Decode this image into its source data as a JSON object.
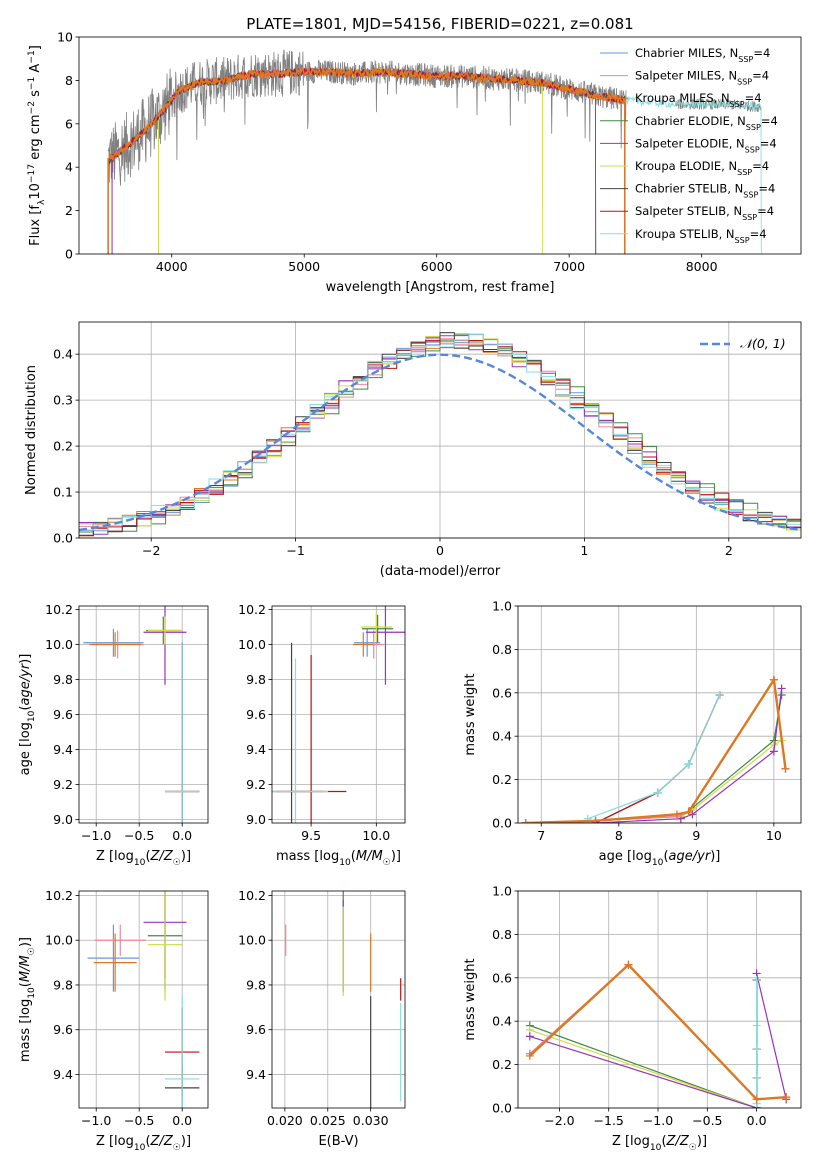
{
  "figure": {
    "title": "PLATE=1801, MJD=54156, FIBERID=0221, z=0.081"
  },
  "colors": {
    "chabrier_miles": "#6699dd",
    "salpeter_miles": "#ee8899",
    "kroupa_miles": "#dd7722",
    "chabrier_elodie": "#448844",
    "salpeter_elodie": "#9933bb",
    "kroupa_elodie": "#ccdd44",
    "chabrier_stelib": "#444444",
    "salpeter_stelib": "#bb1111",
    "kroupa_stelib": "#88dddd",
    "observed": "#808080",
    "normal": "#5588dd"
  },
  "chart_data": [
    {
      "id": "spectrum",
      "type": "line",
      "xlabel": "wavelength [Angstrom, rest frame]",
      "ylabel": "Flux [f_λ 10^-17 erg cm^-2 s^-1 A^-1]",
      "xlim": [
        3300,
        8750
      ],
      "ylim": [
        0,
        10
      ],
      "xticks": [
        4000,
        5000,
        6000,
        7000,
        8000
      ],
      "yticks": [
        0,
        2,
        4,
        6,
        8,
        10
      ],
      "legend_position": "right",
      "legend": [
        "Chabrier MILES, N_SSP=4",
        "Salpeter MILES, N_SSP=4",
        "Kroupa MILES, N_SSP=4",
        "Chabrier ELODIE, N_SSP=4",
        "Salpeter ELODIE, N_SSP=4",
        "Kroupa ELODIE, N_SSP=4",
        "Chabrier STELIB, N_SSP=4",
        "Salpeter STELIB, N_SSP=4",
        "Kroupa STELIB, N_SSP=4"
      ],
      "continuum": {
        "x": [
          3520,
          3650,
          3800,
          3950,
          4050,
          4200,
          4400,
          4600,
          4800,
          5000,
          5200,
          5400,
          5600,
          5800,
          6000,
          6200,
          6400,
          6600,
          6800,
          7000,
          7200,
          7400,
          7600,
          7800,
          8000,
          8200,
          8400
        ],
        "y": [
          4.3,
          4.9,
          5.7,
          6.7,
          7.5,
          7.9,
          8.0,
          8.3,
          8.3,
          8.4,
          8.4,
          8.3,
          8.4,
          8.3,
          8.2,
          8.2,
          8.1,
          8.0,
          7.9,
          7.6,
          7.3,
          7.1,
          7.0,
          6.9,
          6.9,
          6.9,
          6.8
        ]
      },
      "model_ranges": [
        [
          3520,
          7420
        ],
        [
          3520,
          7420
        ],
        [
          3520,
          7420
        ],
        [
          3550,
          7200
        ],
        [
          3550,
          7200
        ],
        [
          3900,
          6800
        ],
        [
          3520,
          7420
        ],
        [
          3520,
          7420
        ],
        [
          3900,
          8450
        ]
      ]
    },
    {
      "id": "residuals",
      "type": "line",
      "xlabel": "(data-model)/error",
      "ylabel": "Normed distribution",
      "xlim": [
        -2.5,
        2.5
      ],
      "ylim": [
        0,
        0.47
      ],
      "xticks": [
        -2,
        -1,
        0,
        1,
        2
      ],
      "yticks": [
        0.0,
        0.1,
        0.2,
        0.3,
        0.4
      ],
      "legend_position": "upper right",
      "series_label": "𝒩(0, 1)",
      "bin_width": 0.1
    },
    {
      "id": "age-vs-metallicity",
      "type": "scatter",
      "xlabel": "Z [log10(Z/Z☉)]",
      "ylabel": "age [log10(age/yr)]",
      "xlim": [
        -1.2,
        0.3
      ],
      "ylim": [
        8.98,
        10.22
      ],
      "xticks": [
        -1.0,
        -0.5,
        0.0
      ],
      "yticks": [
        9.0,
        9.2,
        9.4,
        9.6,
        9.8,
        10.0,
        10.2
      ],
      "points": [
        {
          "series": 0,
          "x": -0.8,
          "y": 10.01,
          "xerr": 0.35,
          "yerr": 0.08
        },
        {
          "series": 1,
          "x": -0.75,
          "y": 10.0,
          "xerr": 0.3,
          "yerr": 0.08
        },
        {
          "series": 2,
          "x": -0.78,
          "y": 10.0,
          "xerr": 0.3,
          "yerr": 0.07
        },
        {
          "series": 3,
          "x": -0.22,
          "y": 10.08,
          "xerr": 0.2,
          "yerr": 0.08
        },
        {
          "series": 4,
          "x": -0.2,
          "y": 10.07,
          "xerr": 0.25,
          "yerr": 0.3
        },
        {
          "series": 5,
          "x": -0.2,
          "y": 10.08,
          "xerr": 0.2,
          "yerr": 0.08
        },
        {
          "series": 6,
          "x": 0.0,
          "y": 9.16,
          "xerr": 0.2,
          "yerr": 0.85
        },
        {
          "series": 7,
          "x": 0.0,
          "y": 9.16,
          "xerr": 0.2,
          "yerr": 0.85
        },
        {
          "series": 8,
          "x": 0.0,
          "y": 9.16,
          "xerr": 0.2,
          "yerr": 0.85
        }
      ]
    },
    {
      "id": "age-vs-mass",
      "type": "scatter",
      "xlabel": "mass [log10(M/M☉)]",
      "ylabel": "",
      "xlim": [
        9.2,
        10.22
      ],
      "ylim": [
        8.98,
        10.22
      ],
      "xticks": [
        9.5,
        10.0
      ],
      "yticks": [
        9.0,
        9.2,
        9.4,
        9.6,
        9.8,
        10.0,
        10.2
      ],
      "points": [
        {
          "series": 0,
          "x": 9.93,
          "y": 10.01,
          "xerr": 0.1,
          "yerr": 0.08
        },
        {
          "series": 1,
          "x": 9.98,
          "y": 10.0,
          "xerr": 0.08,
          "yerr": 0.08
        },
        {
          "series": 2,
          "x": 9.9,
          "y": 10.0,
          "xerr": 0.08,
          "yerr": 0.07
        },
        {
          "series": 3,
          "x": 10.01,
          "y": 10.09,
          "xerr": 0.12,
          "yerr": 0.08
        },
        {
          "series": 4,
          "x": 10.07,
          "y": 10.07,
          "xerr": 0.15,
          "yerr": 0.3
        },
        {
          "series": 5,
          "x": 10.0,
          "y": 10.1,
          "xerr": 0.12,
          "yerr": 0.08
        },
        {
          "series": 6,
          "x": 9.35,
          "y": 9.16,
          "xerr": 0.25,
          "yerr": 0.85
        },
        {
          "series": 7,
          "x": 9.5,
          "y": 9.16,
          "xerr": 0.27,
          "yerr": 0.78
        },
        {
          "series": 8,
          "x": 9.38,
          "y": 9.16,
          "xerr": 0.25,
          "yerr": 0.76
        }
      ]
    },
    {
      "id": "weight-vs-age",
      "type": "line",
      "xlabel": "age [log10(age/yr)]",
      "ylabel": "mass weight",
      "xlim": [
        6.7,
        10.35
      ],
      "ylim": [
        0,
        1.0
      ],
      "xticks": [
        7,
        8,
        9,
        10
      ],
      "yticks": [
        0.0,
        0.2,
        0.4,
        0.6,
        0.8,
        1.0
      ],
      "series": [
        {
          "x": [
            6.8,
            7.7,
            8.75,
            8.9,
            10.0,
            10.15
          ],
          "y": [
            0.0,
            0.01,
            0.03,
            0.05,
            0.66,
            0.25
          ]
        },
        {
          "x": [
            6.8,
            7.7,
            8.75,
            8.9,
            10.0,
            10.15
          ],
          "y": [
            0.0,
            0.01,
            0.03,
            0.05,
            0.66,
            0.25
          ]
        },
        {
          "x": [
            6.8,
            7.7,
            8.75,
            8.9,
            10.0,
            10.15
          ],
          "y": [
            0.0,
            0.01,
            0.04,
            0.05,
            0.66,
            0.25
          ]
        },
        {
          "x": [
            6.8,
            7.7,
            8.8,
            8.95,
            10.0,
            10.1
          ],
          "y": [
            0.0,
            0.01,
            0.03,
            0.07,
            0.38,
            0.59
          ]
        },
        {
          "x": [
            6.8,
            7.7,
            8.8,
            8.95,
            10.0,
            10.1
          ],
          "y": [
            0.0,
            0.0,
            0.02,
            0.04,
            0.33,
            0.62
          ]
        },
        {
          "x": [
            6.8,
            7.7,
            8.8,
            8.95,
            10.0,
            10.1
          ],
          "y": [
            0.0,
            0.01,
            0.03,
            0.06,
            0.36,
            0.38
          ]
        },
        {
          "x": [
            7.7,
            8.5,
            8.9,
            9.3
          ],
          "y": [
            0.0,
            0.14,
            0.27,
            0.59
          ]
        },
        {
          "x": [
            7.7,
            8.5,
            8.9,
            9.3
          ],
          "y": [
            0.0,
            0.14,
            0.27,
            0.59
          ]
        },
        {
          "x": [
            7.6,
            8.5,
            8.9,
            9.3
          ],
          "y": [
            0.02,
            0.14,
            0.27,
            0.59
          ]
        }
      ]
    },
    {
      "id": "mass-vs-metallicity",
      "type": "scatter",
      "xlabel": "Z [log10(Z/Z☉)]",
      "ylabel": "mass [log10(M/M☉)]",
      "xlim": [
        -1.2,
        0.3
      ],
      "ylim": [
        9.25,
        10.22
      ],
      "xticks": [
        -1.0,
        -0.5,
        0.0
      ],
      "yticks": [
        9.4,
        9.6,
        9.8,
        10.0,
        10.2
      ],
      "points": [
        {
          "series": 0,
          "x": -0.8,
          "y": 9.92,
          "xerr": 0.3,
          "yerr": 0.15
        },
        {
          "series": 1,
          "x": -0.72,
          "y": 10.0,
          "xerr": 0.3,
          "yerr": 0.07
        },
        {
          "series": 2,
          "x": -0.78,
          "y": 9.9,
          "xerr": 0.25,
          "yerr": 0.13
        },
        {
          "series": 3,
          "x": -0.2,
          "y": 10.02,
          "xerr": 0.2,
          "yerr": 0.25
        },
        {
          "series": 4,
          "x": -0.2,
          "y": 10.08,
          "xerr": 0.25,
          "yerr": 0.25
        },
        {
          "series": 5,
          "x": -0.2,
          "y": 9.98,
          "xerr": 0.2,
          "yerr": 0.25
        },
        {
          "series": 6,
          "x": 0.0,
          "y": 9.34,
          "xerr": 0.2,
          "yerr": 0.1
        },
        {
          "series": 7,
          "x": 0.0,
          "y": 9.5,
          "xerr": 0.2,
          "yerr": 0.2
        },
        {
          "series": 8,
          "x": 0.0,
          "y": 9.38,
          "xerr": 0.2,
          "yerr": 0.37
        }
      ]
    },
    {
      "id": "mass-vs-extinction",
      "type": "scatter",
      "xlabel": "E(B-V)",
      "ylabel": "",
      "xlim": [
        0.0185,
        0.034
      ],
      "ylim": [
        9.25,
        10.22
      ],
      "xticks": [
        0.02,
        0.025,
        0.03
      ],
      "yticks": [
        9.4,
        9.6,
        9.8,
        10.0,
        10.2
      ],
      "points": [
        {
          "series": 0,
          "x": 0.0268,
          "y": 9.92,
          "yerr": 0.15
        },
        {
          "series": 1,
          "x": 0.0201,
          "y": 10.0,
          "yerr": 0.07
        },
        {
          "series": 2,
          "x": 0.03,
          "y": 9.9,
          "yerr": 0.13
        },
        {
          "series": 3,
          "x": 0.0268,
          "y": 10.02,
          "yerr": 0.25
        },
        {
          "series": 4,
          "x": 0.0268,
          "y": 10.08,
          "yerr": 0.1
        },
        {
          "series": 5,
          "x": 0.0268,
          "y": 9.95,
          "yerr": 0.2
        },
        {
          "series": 6,
          "x": 0.03,
          "y": 9.5,
          "yerr": 0.25
        },
        {
          "series": 7,
          "x": 0.0335,
          "y": 9.78,
          "yerr": 0.05
        },
        {
          "series": 8,
          "x": 0.0335,
          "y": 9.5,
          "yerr": 0.22
        }
      ]
    },
    {
      "id": "weight-vs-metallicity",
      "type": "line",
      "xlabel": "Z [log10(Z/Z☉)]",
      "ylabel": "mass weight",
      "xlim": [
        -2.42,
        0.45
      ],
      "ylim": [
        0,
        1.0
      ],
      "xticks": [
        -2.0,
        -1.5,
        -1.0,
        -0.5,
        0.0
      ],
      "yticks": [
        0.0,
        0.2,
        0.4,
        0.6,
        0.8,
        1.0
      ],
      "series": [
        {
          "x": [
            -2.3,
            -1.3,
            0.0,
            0.3
          ],
          "y": [
            0.25,
            0.66,
            0.04,
            0.05
          ]
        },
        {
          "x": [
            -2.3,
            -1.3,
            0.0,
            0.3
          ],
          "y": [
            0.25,
            0.66,
            0.04,
            0.05
          ]
        },
        {
          "x": [
            -2.3,
            -1.3,
            0.0,
            0.3
          ],
          "y": [
            0.24,
            0.66,
            0.04,
            0.05
          ]
        },
        {
          "x": [
            -2.3,
            0.0,
            0.0
          ],
          "y": [
            0.38,
            0.0,
            0.59
          ]
        },
        {
          "x": [
            -2.3,
            0.0,
            0.0,
            0.3
          ],
          "y": [
            0.33,
            0.0,
            0.62,
            0.04
          ]
        },
        {
          "x": [
            -2.3,
            0.0,
            0.0
          ],
          "y": [
            0.36,
            0.0,
            0.38
          ]
        },
        {
          "x": [
            0.0,
            0.0,
            0.0,
            0.0
          ],
          "y": [
            0.0,
            0.14,
            0.27,
            0.59
          ]
        },
        {
          "x": [
            0.0,
            0.0,
            0.0,
            0.0
          ],
          "y": [
            0.0,
            0.14,
            0.27,
            0.59
          ]
        },
        {
          "x": [
            0.0,
            0.0,
            0.0,
            0.0
          ],
          "y": [
            0.02,
            0.14,
            0.27,
            0.59
          ]
        }
      ]
    }
  ]
}
